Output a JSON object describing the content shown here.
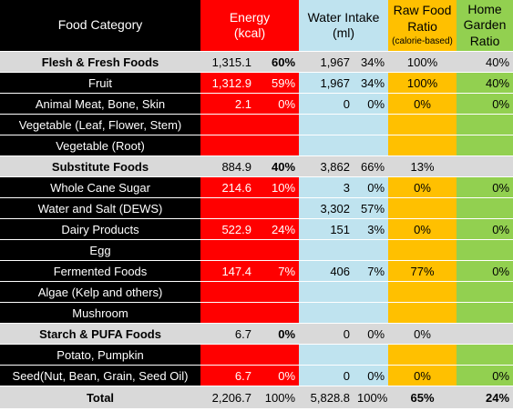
{
  "header": {
    "category": "Food Category",
    "energy_line1": "Energy",
    "energy_line2": "(kcal)",
    "water_line1": "Water Intake",
    "water_line2": "(ml)",
    "raw_line1": "Raw Food",
    "raw_line2": "Ratio",
    "raw_line3": "(calorie-based)",
    "home_line1": "Home",
    "home_line2": "Garden",
    "home_line3": "Ratio"
  },
  "rows": [
    {
      "type": "group",
      "name": "Flesh & Fresh Foods",
      "energy": "1,315.1",
      "energy_pct": "60%",
      "water": "1,967",
      "water_pct": "34%",
      "raw": "100%",
      "home": "40%"
    },
    {
      "type": "item",
      "name": "Fruit",
      "energy": "1,312.9",
      "energy_pct": "59%",
      "water": "1,967",
      "water_pct": "34%",
      "raw": "100%",
      "home": "40%"
    },
    {
      "type": "item",
      "name": "Animal Meat, Bone, Skin",
      "energy": "2.1",
      "energy_pct": "0%",
      "water": "0",
      "water_pct": "0%",
      "raw": "0%",
      "home": "0%"
    },
    {
      "type": "item",
      "name": "Vegetable (Leaf, Flower, Stem)",
      "energy": "",
      "energy_pct": "",
      "water": "",
      "water_pct": "",
      "raw": "",
      "home": ""
    },
    {
      "type": "item",
      "name": "Vegetable (Root)",
      "energy": "",
      "energy_pct": "",
      "water": "",
      "water_pct": "",
      "raw": "",
      "home": ""
    },
    {
      "type": "group",
      "name": "Substitute Foods",
      "energy": "884.9",
      "energy_pct": "40%",
      "water": "3,862",
      "water_pct": "66%",
      "raw": "13%",
      "home": ""
    },
    {
      "type": "item",
      "name": "Whole Cane Sugar",
      "energy": "214.6",
      "energy_pct": "10%",
      "water": "3",
      "water_pct": "0%",
      "raw": "0%",
      "home": "0%"
    },
    {
      "type": "item",
      "name": "Water and Salt (DEWS)",
      "energy": "",
      "energy_pct": "",
      "water": "3,302",
      "water_pct": "57%",
      "raw": "",
      "home": ""
    },
    {
      "type": "item",
      "name": "Dairy Products",
      "energy": "522.9",
      "energy_pct": "24%",
      "water": "151",
      "water_pct": "3%",
      "raw": "0%",
      "home": "0%"
    },
    {
      "type": "item",
      "name": "Egg",
      "energy": "",
      "energy_pct": "",
      "water": "",
      "water_pct": "",
      "raw": "",
      "home": ""
    },
    {
      "type": "item",
      "name": "Fermented Foods",
      "energy": "147.4",
      "energy_pct": "7%",
      "water": "406",
      "water_pct": "7%",
      "raw": "77%",
      "home": "0%"
    },
    {
      "type": "item",
      "name": "Algae (Kelp and others)",
      "energy": "",
      "energy_pct": "",
      "water": "",
      "water_pct": "",
      "raw": "",
      "home": ""
    },
    {
      "type": "item",
      "name": "Mushroom",
      "energy": "",
      "energy_pct": "",
      "water": "",
      "water_pct": "",
      "raw": "",
      "home": ""
    },
    {
      "type": "group",
      "name": "Starch & PUFA Foods",
      "energy": "6.7",
      "energy_pct": "0%",
      "water": "0",
      "water_pct": "0%",
      "raw": "0%",
      "home": ""
    },
    {
      "type": "item",
      "name": "Potato, Pumpkin",
      "energy": "",
      "energy_pct": "",
      "water": "",
      "water_pct": "",
      "raw": "",
      "home": ""
    },
    {
      "type": "item",
      "name": "Seed(Nut, Bean, Grain, Seed Oil)",
      "energy": "6.7",
      "energy_pct": "0%",
      "water": "0",
      "water_pct": "0%",
      "raw": "0%",
      "home": "0%"
    }
  ],
  "total": {
    "name": "Total",
    "energy": "2,206.7",
    "energy_pct": "100%",
    "water": "5,828.8",
    "water_pct": "100%",
    "raw": "65%",
    "home": "24%"
  },
  "colors": {
    "category": "#000000",
    "energy": "#ff0000",
    "water": "#bfe3ef",
    "raw": "#ffc000",
    "home": "#92d050",
    "group": "#d9d9d9"
  }
}
